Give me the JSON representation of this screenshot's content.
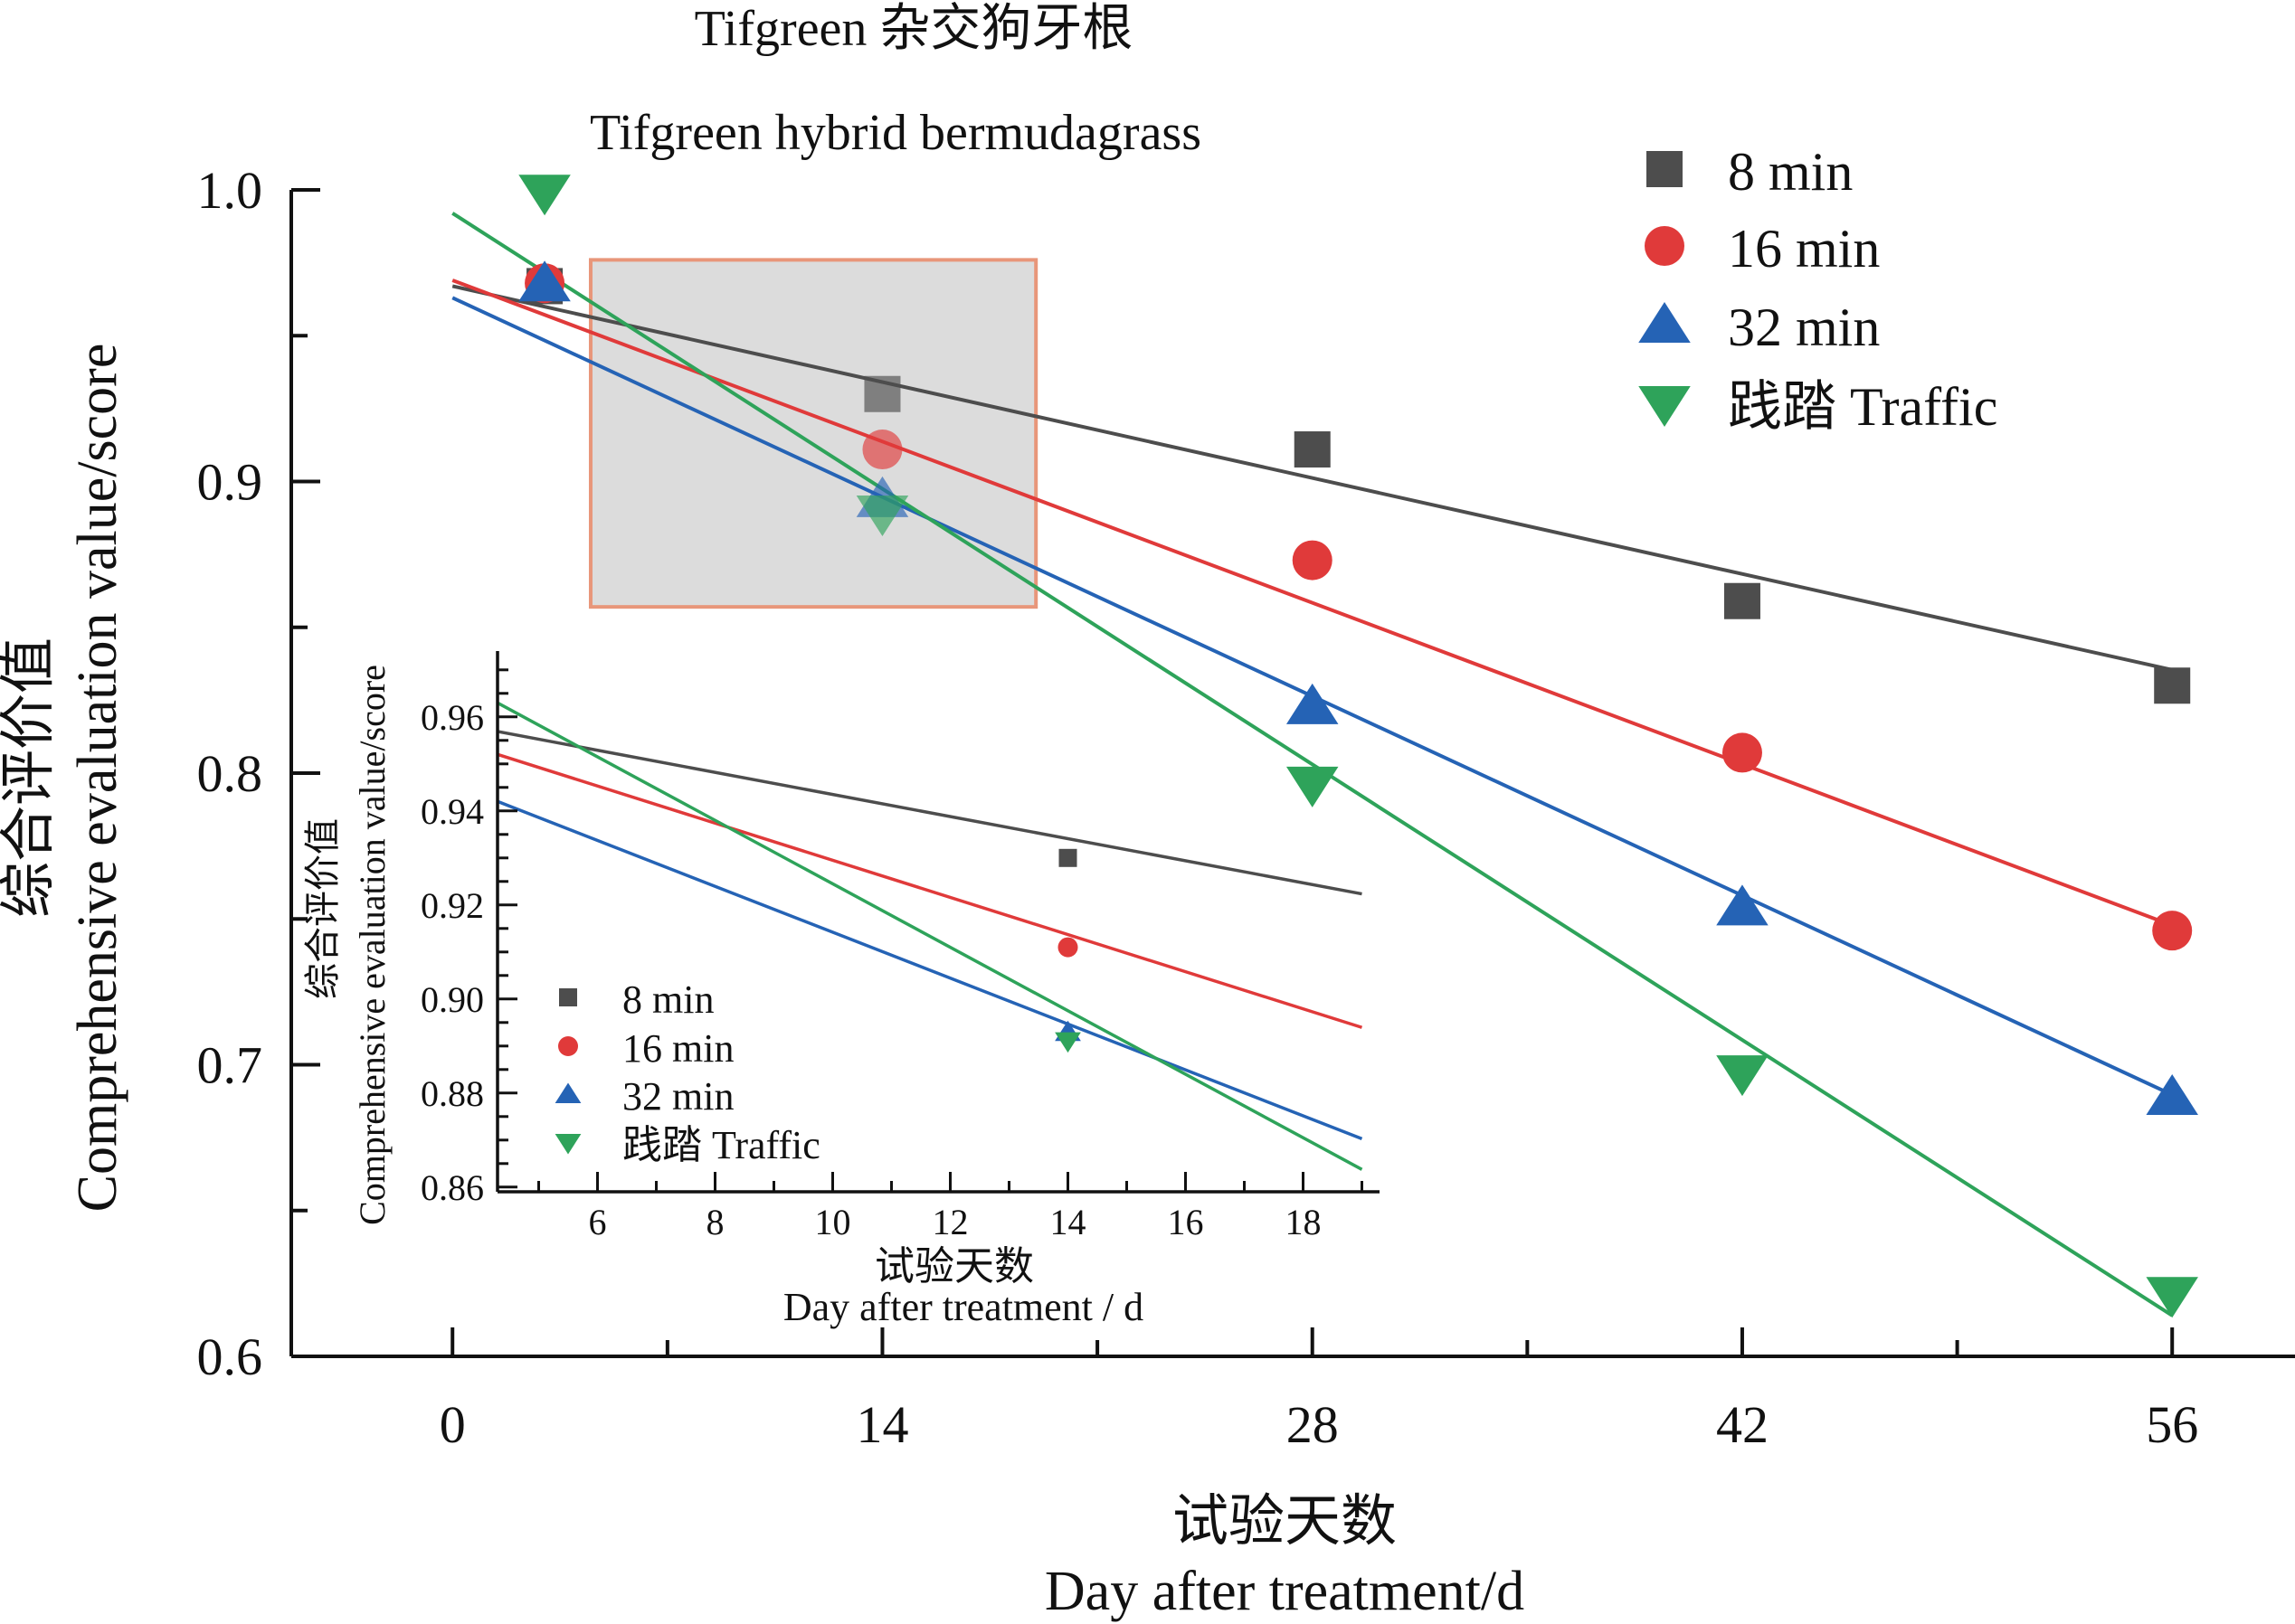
{
  "title_cn": "Tifgreen 杂交狗牙根",
  "title_en": "Tifgreen hybrid bermudagrass",
  "colors": {
    "8min": "#4d4d4d",
    "16min": "#e03a3a",
    "32min": "#2563b5",
    "traffic": "#2ea35a",
    "zoom_fill": "#dcdcdc",
    "zoom_border": "#e8967a"
  },
  "chart_data": [
    {
      "type": "scatter",
      "title": "Tifgreen hybrid bermudagrass",
      "xlabel_cn": "试验天数",
      "xlabel": "Day after treatment/d",
      "ylabel_cn": "综合评价值",
      "ylabel": "Comprehensive evaluation value/score",
      "xlim": [
        -5.25,
        60
      ],
      "ylim": [
        0.6,
        1.0
      ],
      "xticks": [
        0,
        14,
        28,
        42,
        56
      ],
      "yticks": [
        0.6,
        0.7,
        0.8,
        0.9,
        1.0
      ],
      "xtick_labels": [
        "0",
        "14",
        "28",
        "42",
        "56"
      ],
      "ytick_labels": [
        "0.6",
        "0.7",
        "0.8",
        "0.9",
        "1.0"
      ],
      "zoom_box": {
        "x": [
          4.5,
          19.0
        ],
        "y": [
          0.857,
          0.976
        ]
      },
      "legend_position": "top-right",
      "series": [
        {
          "name": "8 min",
          "key": "8min",
          "marker": "square",
          "x": [
            3,
            14,
            28,
            42,
            56
          ],
          "y": [
            0.967,
            0.93,
            0.911,
            0.859,
            0.83
          ],
          "fit": {
            "intercept": 0.967,
            "slope": -0.00235
          }
        },
        {
          "name": "16 min",
          "key": "16min",
          "marker": "circle",
          "x": [
            3,
            14,
            28,
            42,
            56
          ],
          "y": [
            0.968,
            0.911,
            0.873,
            0.807,
            0.746
          ],
          "fit": {
            "intercept": 0.969,
            "slope": -0.00395
          }
        },
        {
          "name": "32 min",
          "key": "32min",
          "marker": "triangle-up",
          "x": [
            3,
            14,
            28,
            42,
            56
          ],
          "y": [
            0.968,
            0.894,
            0.823,
            0.754,
            0.689
          ],
          "fit": {
            "intercept": 0.963,
            "slope": -0.00488
          }
        },
        {
          "name": "践踏 Traffic",
          "key": "traffic",
          "marker": "triangle-down",
          "x": [
            3,
            14,
            28,
            42,
            56
          ],
          "y": [
            0.999,
            0.889,
            0.796,
            0.697,
            0.621
          ],
          "fit": {
            "intercept": 0.992,
            "slope": -0.00675
          }
        }
      ]
    },
    {
      "type": "scatter",
      "title": "inset",
      "xlabel_cn": "试验天数",
      "xlabel": "Day after treatment / d",
      "ylabel_cn": "综合评价值",
      "ylabel": "Comprehensive evaluation value/score",
      "xlim": [
        4.3,
        19.3
      ],
      "ylim": [
        0.859,
        0.974
      ],
      "xticks": [
        6,
        8,
        10,
        12,
        14,
        16,
        18
      ],
      "yticks": [
        0.86,
        0.88,
        0.9,
        0.92,
        0.94,
        0.96
      ],
      "xtick_labels": [
        "6",
        "8",
        "10",
        "12",
        "14",
        "16",
        "18"
      ],
      "ytick_labels": [
        "0.86",
        "0.88",
        "0.90",
        "0.92",
        "0.94",
        "0.96"
      ],
      "legend_position": "bottom-left",
      "series": [
        {
          "name": "8 min",
          "key": "8min",
          "marker": "square",
          "x": [
            14
          ],
          "y": [
            0.93
          ]
        },
        {
          "name": "16 min",
          "key": "16min",
          "marker": "circle",
          "x": [
            14
          ],
          "y": [
            0.911
          ]
        },
        {
          "name": "32 min",
          "key": "32min",
          "marker": "triangle-up",
          "x": [
            14
          ],
          "y": [
            0.893
          ]
        },
        {
          "name": "践踏 Traffic",
          "key": "traffic",
          "marker": "triangle-down",
          "x": [
            14
          ],
          "y": [
            0.891
          ]
        }
      ]
    }
  ]
}
